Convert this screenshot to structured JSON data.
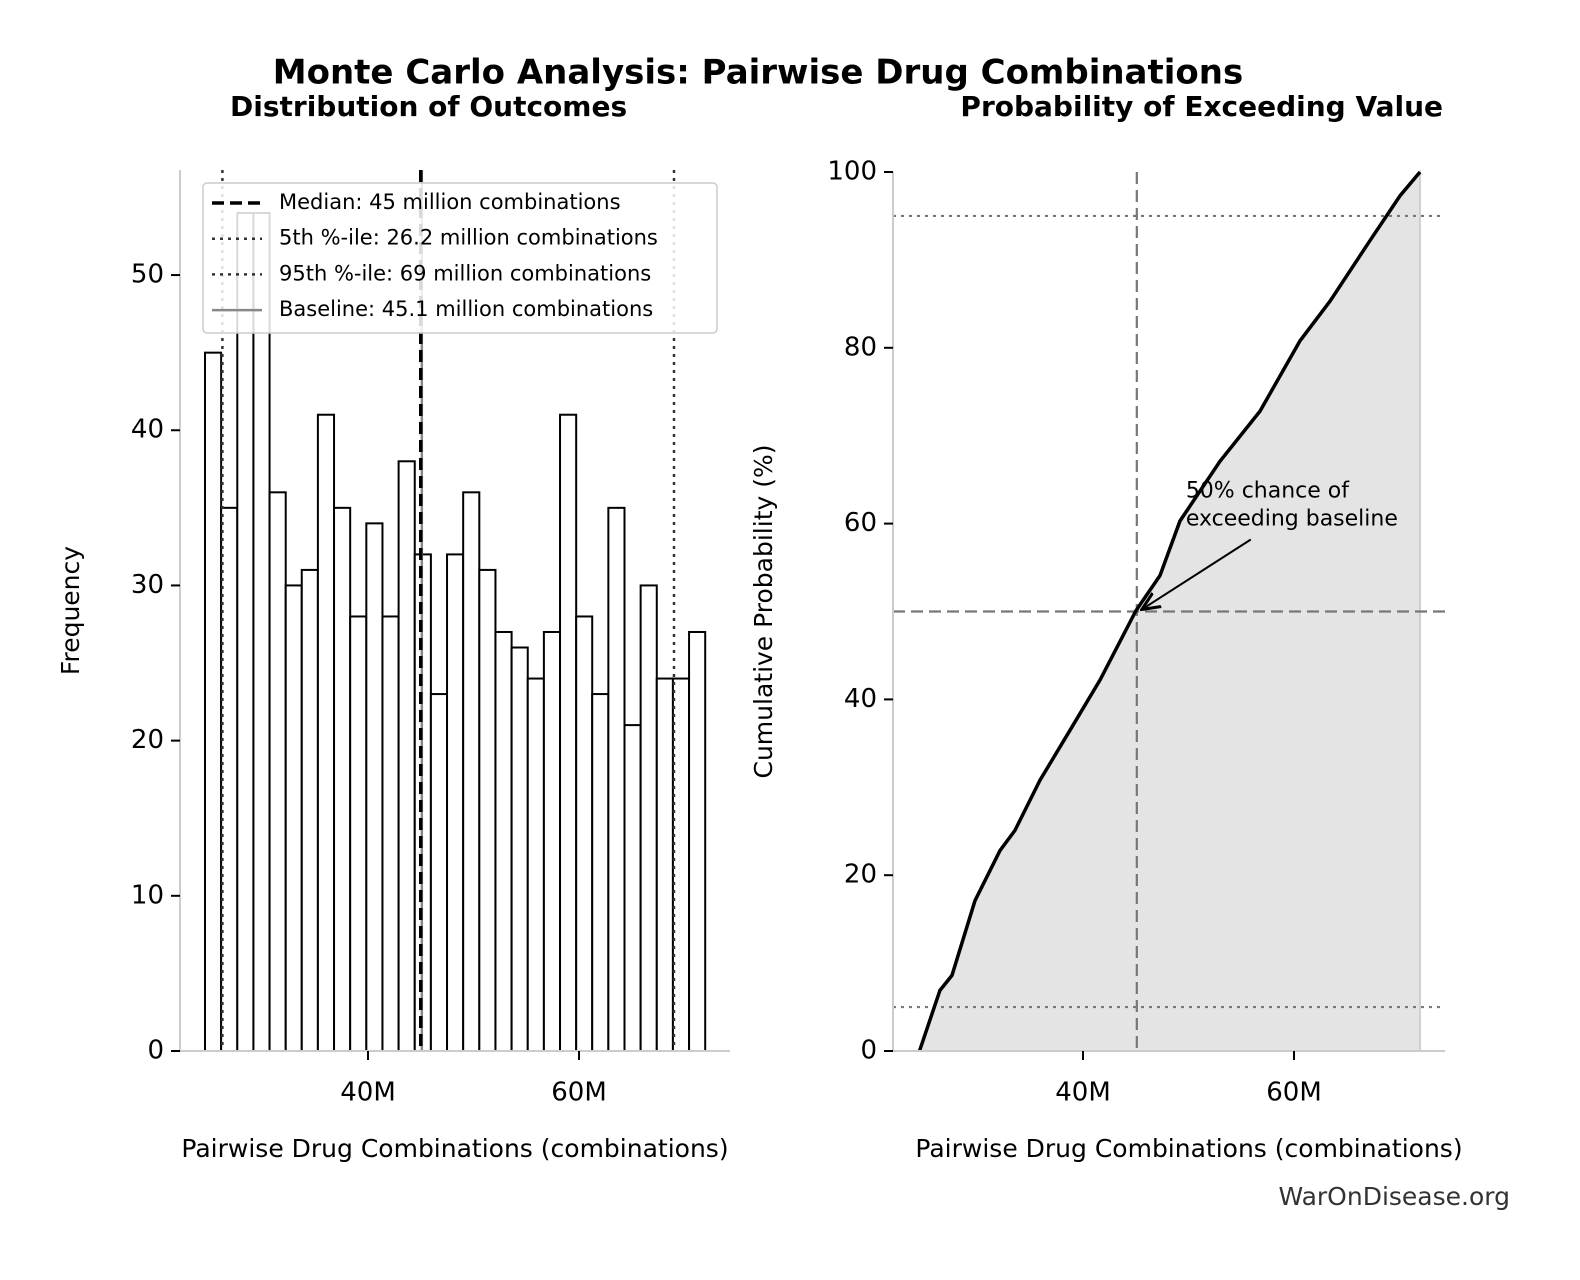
{
  "title": "Monte Carlo Analysis: Pairwise Drug Combinations",
  "footer": "WarOnDisease.org",
  "chart_data": [
    {
      "type": "histogram",
      "title": "Distribution of Outcomes",
      "xlabel": "Pairwise Drug Combinations (combinations)",
      "ylabel": "Frequency",
      "bins": [
        24.55,
        26.08,
        27.61,
        29.14,
        30.67,
        32.2,
        33.72,
        35.25,
        36.78,
        38.31,
        39.84,
        41.37,
        42.9,
        44.43,
        45.96,
        47.49,
        49.02,
        50.55,
        52.08,
        53.61,
        55.14,
        56.67,
        58.2,
        59.73,
        61.25,
        62.78,
        64.31,
        65.84,
        67.37,
        68.9,
        70.43,
        71.96
      ],
      "values": [
        45,
        35,
        54,
        54,
        36,
        30,
        31,
        41,
        35,
        28,
        34,
        28,
        38,
        32,
        23,
        32,
        36,
        31,
        27,
        26,
        24,
        27,
        41,
        28,
        23,
        35,
        21,
        30,
        24,
        24,
        27
      ],
      "color": "#ffffff",
      "edge_color": "#000000",
      "xlim": [
        22.18,
        74.31
      ],
      "ylim": [
        0,
        56.77
      ],
      "xticks": [
        {
          "value": 40,
          "label": "40M"
        },
        {
          "value": 60,
          "label": "60M"
        }
      ],
      "yticks": [
        0,
        10,
        20,
        30,
        40,
        50
      ],
      "reference_lines": [
        {
          "name": "Median: 45 million combinations",
          "value": 45,
          "color": "#000000",
          "style": "dashed"
        },
        {
          "name": "5th %-ile: 26.2 million combinations",
          "value": 26.2,
          "color": "#333333",
          "style": "dotted"
        },
        {
          "name": "95th %-ile: 69 million combinations",
          "value": 69,
          "color": "#333333",
          "style": "dotted"
        },
        {
          "name": "Baseline: 45.1 million combinations",
          "value": 45.1,
          "color": "#888888",
          "style": "solid"
        }
      ],
      "legend": "upper center"
    },
    {
      "type": "line",
      "title": "Probability of Exceeding Value",
      "xlabel": "Pairwise Drug Combinations (combinations)",
      "ylabel": "Cumulative Probability (%)",
      "x": [
        24.5,
        26.44,
        27.58,
        29.76,
        32.13,
        33.55,
        35.92,
        38.77,
        41.61,
        45.02,
        47.3,
        49.19,
        52.99,
        56.78,
        60.57,
        63.41,
        67.2,
        70.05,
        71.94
      ],
      "y": [
        0,
        6.9,
        8.6,
        17.1,
        22.8,
        25.1,
        30.8,
        36.5,
        42.2,
        50.1,
        54.1,
        60.3,
        67.1,
        72.8,
        80.8,
        85.3,
        92.2,
        97.3,
        100
      ],
      "color": "#000000",
      "fill_color": "#e4e4e4",
      "xlim": [
        21.99,
        74.31
      ],
      "ylim": [
        0,
        100
      ],
      "xticks": [
        {
          "value": 40,
          "label": "40M"
        },
        {
          "value": 60,
          "label": "60M"
        }
      ],
      "yticks": [
        0,
        20,
        40,
        60,
        80,
        100
      ],
      "hlines": [
        {
          "value": 5,
          "style": "dotted"
        },
        {
          "value": 50,
          "style": "dashed"
        },
        {
          "value": 95,
          "style": "dotted"
        }
      ],
      "vlines": [
        {
          "value": 45.1,
          "style": "dashed"
        }
      ],
      "annotation": [
        "50% chance of",
        "exceeding baseline"
      ]
    }
  ]
}
